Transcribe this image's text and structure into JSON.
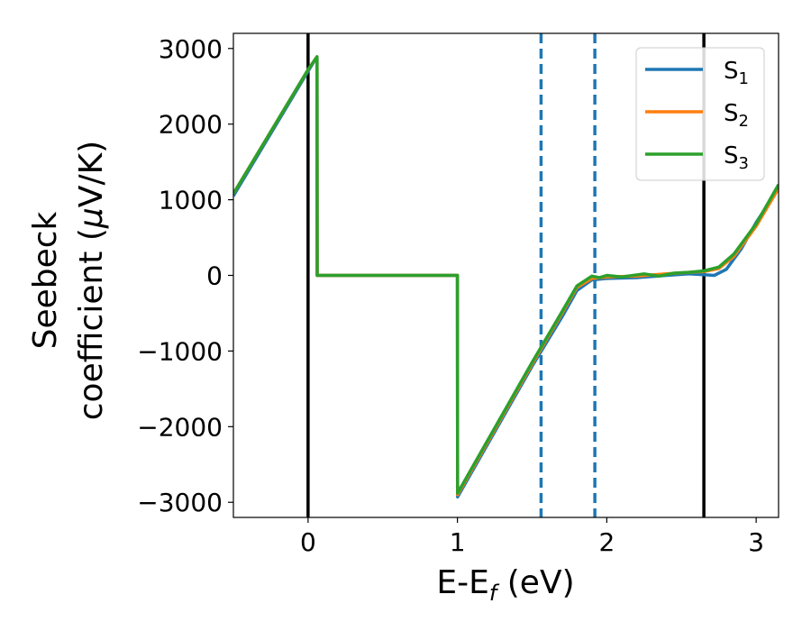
{
  "chart_data": {
    "type": "line",
    "xlabel_main": "E-E",
    "xlabel_sub": "f",
    "xlabel_unit": " (eV)",
    "ylabel_line1": "Seebeck",
    "ylabel_line2": "coefficient  (",
    "ylabel_mu": "μ",
    "ylabel_unit": "V/K)",
    "xlim": [
      -0.5,
      3.15
    ],
    "ylim": [
      -3200,
      3200
    ],
    "xticks": [
      0,
      1,
      2,
      3
    ],
    "yticks": [
      3000,
      2000,
      1000,
      0,
      -1000,
      -2000,
      -3000
    ],
    "xtick_labels": [
      "0",
      "1",
      "2",
      "3"
    ],
    "ytick_labels": [
      "3000",
      "2000",
      "1000",
      "0",
      "−1000",
      "−2000",
      "−3000"
    ],
    "vlines_solid": [
      0.0,
      2.65
    ],
    "vlines_dashed": [
      1.56,
      1.92
    ],
    "legend_position": "upper-right",
    "series": [
      {
        "name": "S",
        "sub": "1",
        "color": "#1f77b4",
        "points": [
          [
            -0.5,
            1050
          ],
          [
            0.0,
            2700
          ],
          [
            0.06,
            2890
          ],
          [
            0.061,
            0
          ],
          [
            1.0,
            0
          ],
          [
            1.001,
            -2930
          ],
          [
            1.5,
            -1200
          ],
          [
            1.7,
            -550
          ],
          [
            1.8,
            -200
          ],
          [
            1.9,
            -60
          ],
          [
            2.0,
            -40
          ],
          [
            2.2,
            -30
          ],
          [
            2.4,
            0
          ],
          [
            2.55,
            20
          ],
          [
            2.65,
            10
          ],
          [
            2.72,
            0
          ],
          [
            2.8,
            80
          ],
          [
            2.9,
            350
          ],
          [
            3.0,
            700
          ],
          [
            3.15,
            1150
          ]
        ]
      },
      {
        "name": "S",
        "sub": "2",
        "color": "#ff7f0e",
        "points": [
          [
            -0.5,
            1080
          ],
          [
            0.0,
            2720
          ],
          [
            0.06,
            2890
          ],
          [
            0.061,
            0
          ],
          [
            1.0,
            0
          ],
          [
            1.001,
            -2900
          ],
          [
            1.5,
            -1170
          ],
          [
            1.7,
            -500
          ],
          [
            1.8,
            -160
          ],
          [
            1.9,
            -40
          ],
          [
            2.0,
            -20
          ],
          [
            2.2,
            -10
          ],
          [
            2.4,
            20
          ],
          [
            2.55,
            40
          ],
          [
            2.65,
            50
          ],
          [
            2.75,
            90
          ],
          [
            2.85,
            250
          ],
          [
            3.0,
            650
          ],
          [
            3.15,
            1150
          ]
        ]
      },
      {
        "name": "S",
        "sub": "3",
        "color": "#2ca02c",
        "points": [
          [
            -0.5,
            1080
          ],
          [
            0.0,
            2720
          ],
          [
            0.06,
            2890
          ],
          [
            0.061,
            0
          ],
          [
            1.0,
            0
          ],
          [
            1.001,
            -2880
          ],
          [
            1.5,
            -1150
          ],
          [
            1.7,
            -480
          ],
          [
            1.8,
            -140
          ],
          [
            1.9,
            -10
          ],
          [
            1.95,
            -30
          ],
          [
            2.0,
            0
          ],
          [
            2.1,
            -20
          ],
          [
            2.25,
            20
          ],
          [
            2.35,
            -10
          ],
          [
            2.45,
            30
          ],
          [
            2.55,
            40
          ],
          [
            2.65,
            60
          ],
          [
            2.75,
            110
          ],
          [
            2.85,
            280
          ],
          [
            3.0,
            680
          ],
          [
            3.15,
            1200
          ]
        ]
      }
    ]
  }
}
